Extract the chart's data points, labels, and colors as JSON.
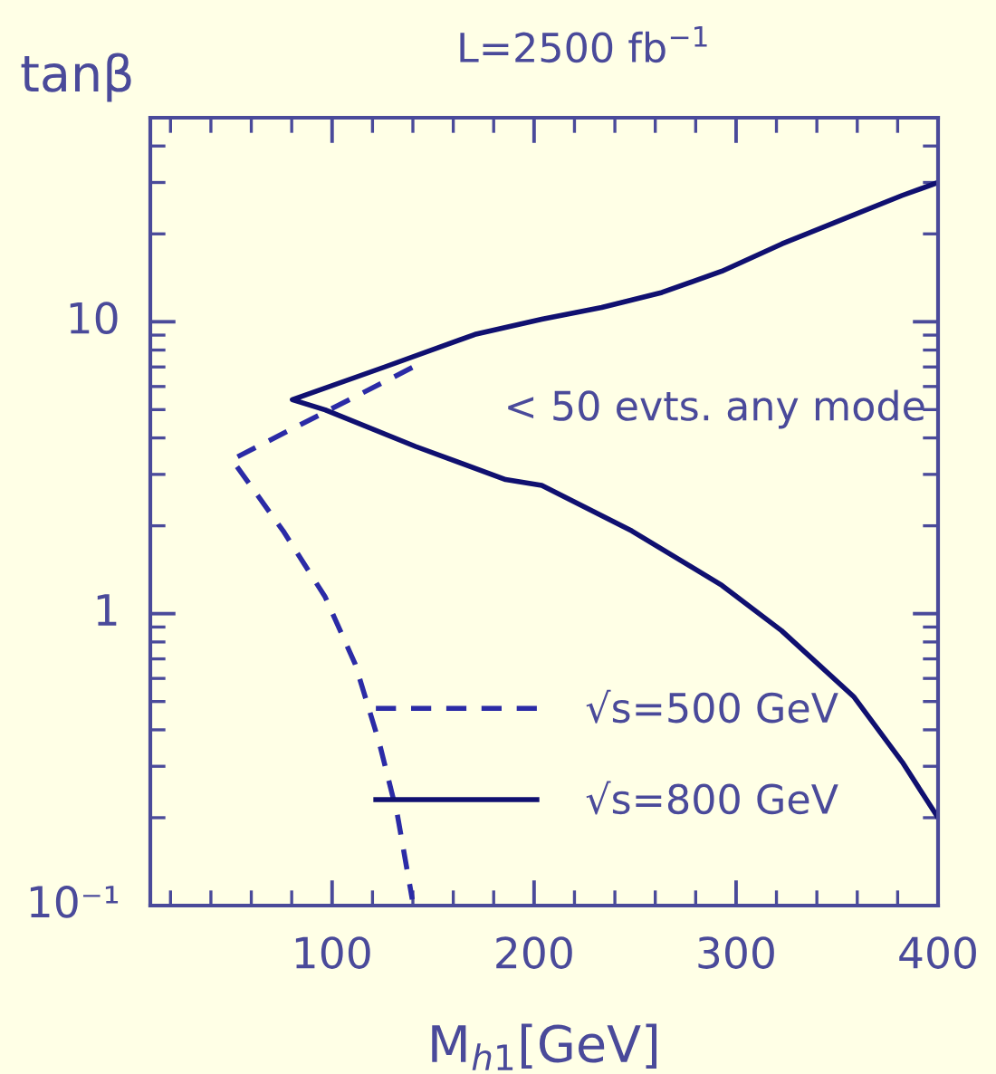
{
  "chart_data": {
    "type": "line",
    "title": "L=2500 fb$^{−1}$",
    "xlabel": "M$_{h1}$[GeV]",
    "ylabel": "tanβ",
    "annotations": [
      "< 50 evts. any mode"
    ],
    "xlim": [
      10,
      400
    ],
    "xticks": [
      100,
      200,
      300,
      400
    ],
    "ylim": [
      0.1,
      50
    ],
    "yticks": [
      {
        "value": 0.1,
        "label": "10⁻¹"
      },
      1,
      10
    ],
    "log": "y",
    "grid": false,
    "legend": "bottom",
    "marker": "none",
    "series": [
      {
        "name": "√s=500 GeV",
        "color": "#2b2ba6",
        "line_style": "dashed",
        "x": [
          139.7,
          50.4,
          75.8,
          96.6,
          111.5,
          123.4,
          132.3,
          139.7
        ],
        "values": [
          6.97,
          3.37,
          1.92,
          1.14,
          0.67,
          0.36,
          0.205,
          0.105
        ]
      },
      {
        "name": "√s=800 GeV",
        "color": "#101070",
        "line_style": "solid",
        "x": [
          400,
          382.3,
          352.6,
          322.8,
          293,
          263.3,
          233.5,
          203.8,
          170.7,
          126,
          80.3,
          96.6,
          141.3,
          185.9,
          203.8,
          248.4,
          293,
          322.5,
          358.2,
          382.3,
          400
        ],
        "values": [
          30,
          27.1,
          22.4,
          18.5,
          14.9,
          12.6,
          11.2,
          10.2,
          9.05,
          7.0,
          5.41,
          4.99,
          3.74,
          2.88,
          2.75,
          1.92,
          1.25,
          0.875,
          0.52,
          0.31,
          0.2
        ]
      }
    ]
  }
}
